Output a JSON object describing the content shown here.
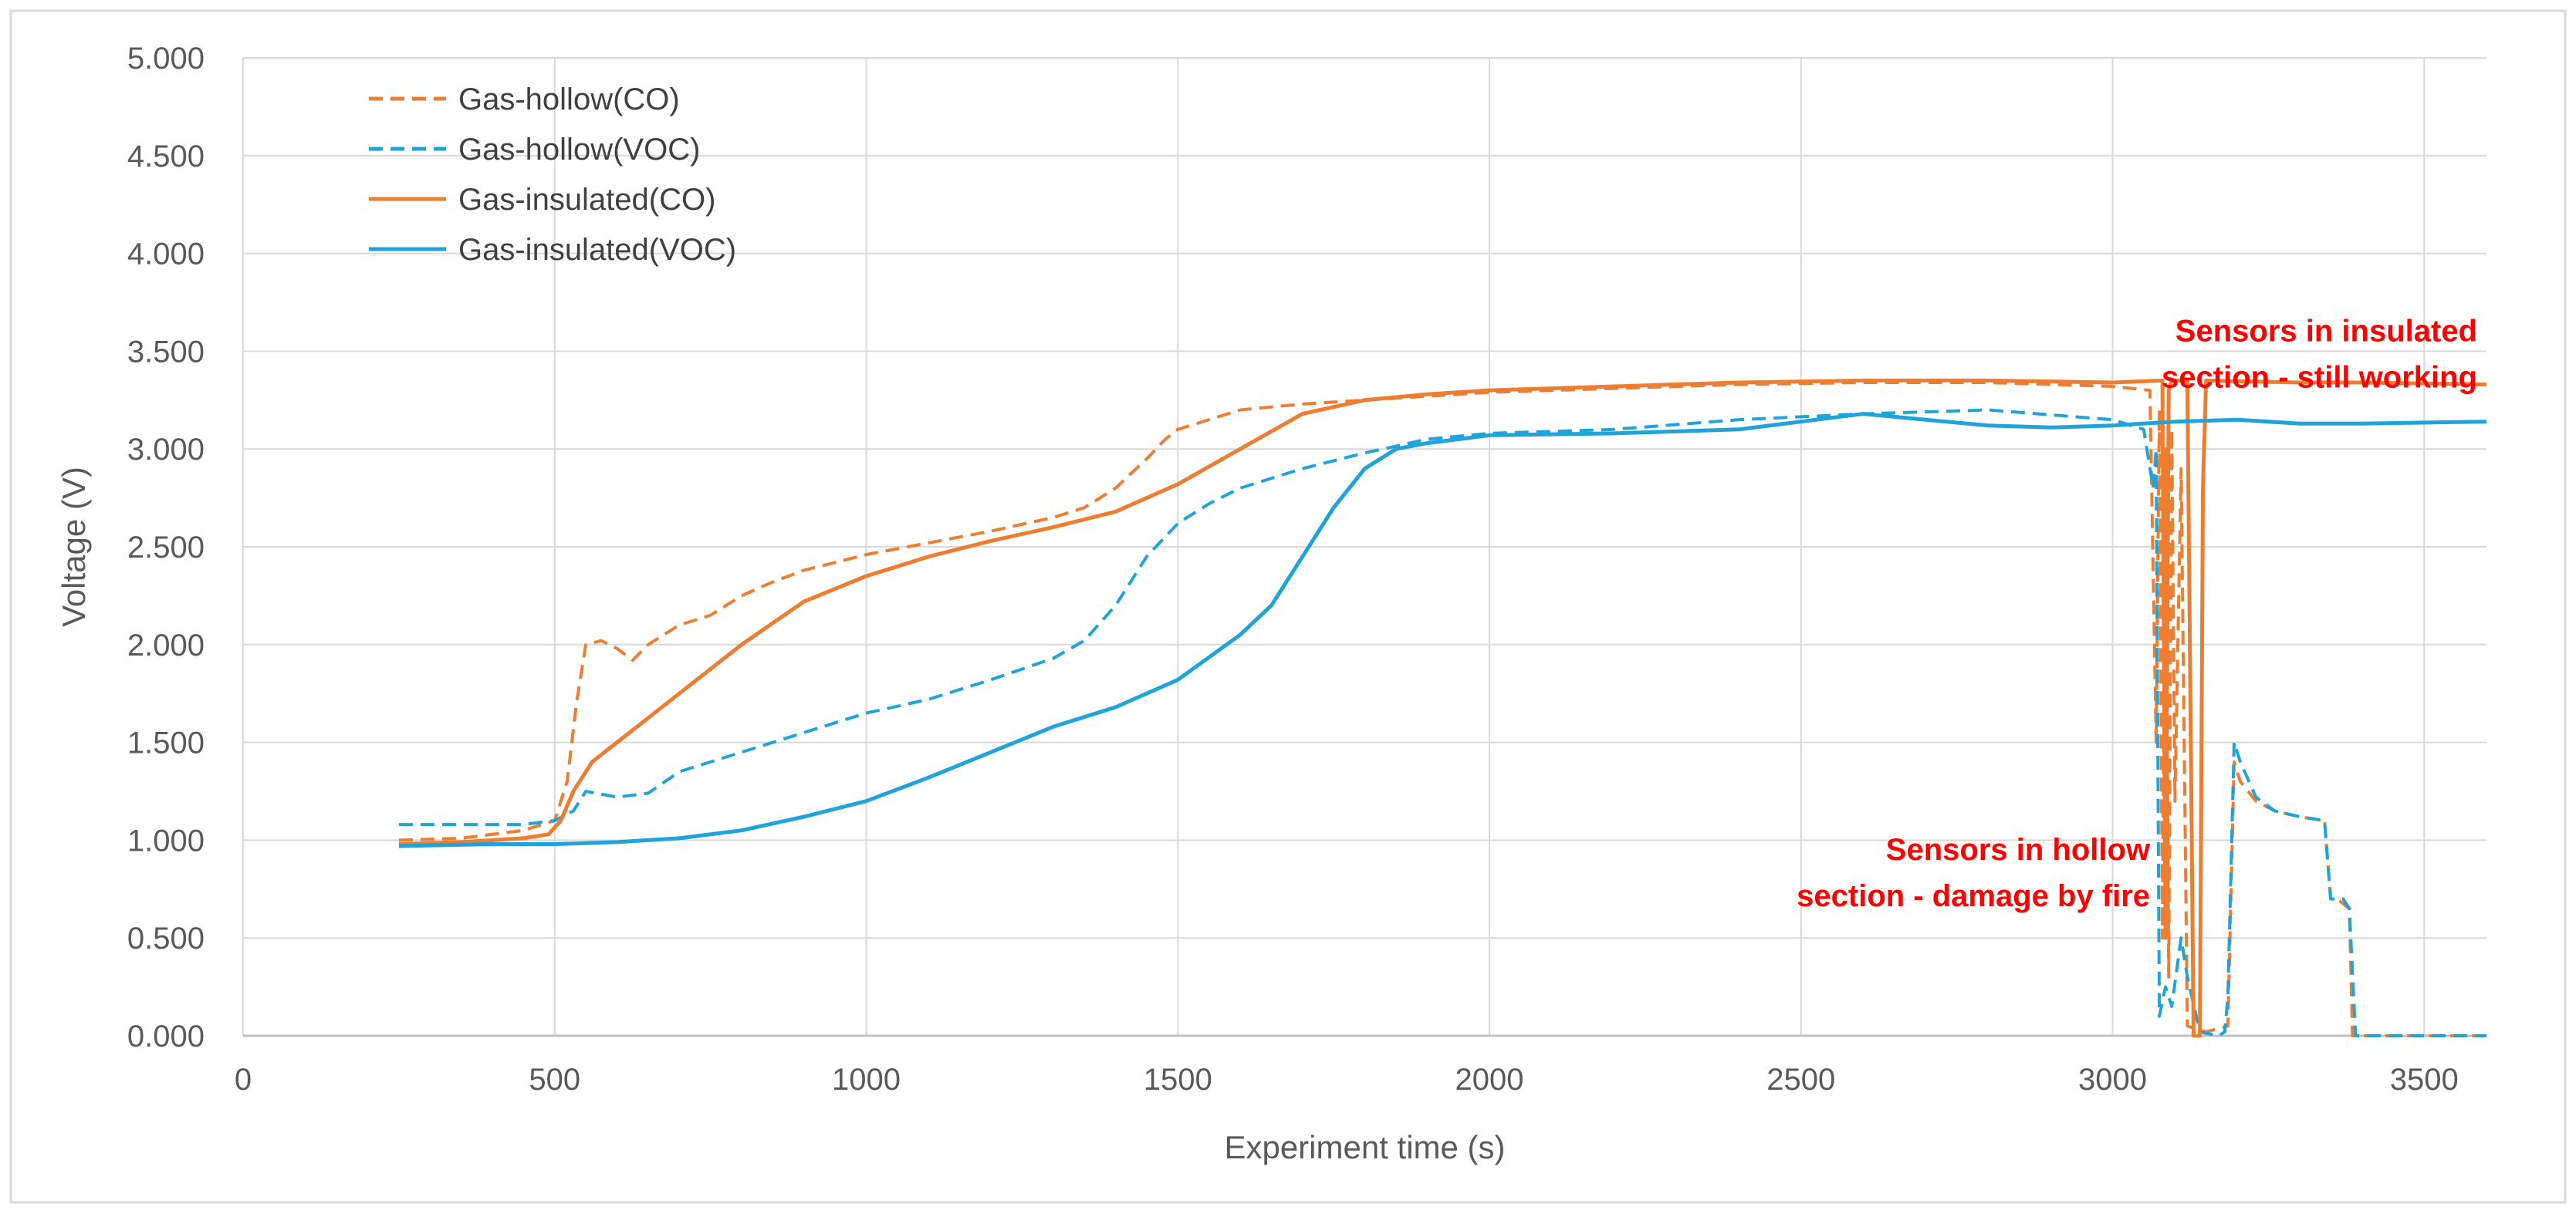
{
  "chart_data": {
    "type": "line",
    "title": "",
    "xlabel": "Experiment time (s)",
    "ylabel": "Voltage (V)",
    "xlim": [
      0,
      3600
    ],
    "ylim": [
      0,
      5
    ],
    "xticks": [
      0,
      500,
      1000,
      1500,
      2000,
      2500,
      3000,
      3500
    ],
    "yticks": [
      "0.000",
      "0.500",
      "1.000",
      "1.500",
      "2.000",
      "2.500",
      "3.000",
      "3.500",
      "4.000",
      "4.500",
      "5.000"
    ],
    "grid": true,
    "legend_position": "top-left",
    "series": [
      {
        "name": "Gas-hollow(CO)",
        "color": "#ED7D31",
        "dash": "dashed",
        "points": [
          [
            250,
            1.0
          ],
          [
            350,
            1.01
          ],
          [
            450,
            1.05
          ],
          [
            500,
            1.1
          ],
          [
            520,
            1.3
          ],
          [
            535,
            1.7
          ],
          [
            550,
            2.0
          ],
          [
            575,
            2.02
          ],
          [
            600,
            1.98
          ],
          [
            625,
            1.92
          ],
          [
            650,
            2.0
          ],
          [
            700,
            2.1
          ],
          [
            750,
            2.15
          ],
          [
            800,
            2.25
          ],
          [
            850,
            2.32
          ],
          [
            900,
            2.38
          ],
          [
            950,
            2.42
          ],
          [
            1000,
            2.46
          ],
          [
            1100,
            2.52
          ],
          [
            1200,
            2.58
          ],
          [
            1300,
            2.65
          ],
          [
            1350,
            2.7
          ],
          [
            1400,
            2.8
          ],
          [
            1450,
            2.95
          ],
          [
            1480,
            3.05
          ],
          [
            1500,
            3.1
          ],
          [
            1550,
            3.15
          ],
          [
            1600,
            3.2
          ],
          [
            1700,
            3.23
          ],
          [
            1800,
            3.25
          ],
          [
            1900,
            3.27
          ],
          [
            2000,
            3.29
          ],
          [
            2200,
            3.31
          ],
          [
            2400,
            3.33
          ],
          [
            2600,
            3.34
          ],
          [
            2800,
            3.34
          ],
          [
            3000,
            3.32
          ],
          [
            3060,
            3.3
          ],
          [
            3070,
            1.5
          ],
          [
            3075,
            3.2
          ],
          [
            3080,
            0.5
          ],
          [
            3085,
            3.0
          ],
          [
            3090,
            0.3
          ],
          [
            3095,
            3.1
          ],
          [
            3100,
            1.2
          ],
          [
            3110,
            2.9
          ],
          [
            3120,
            0.05
          ],
          [
            3150,
            0.02
          ],
          [
            3185,
            0.05
          ],
          [
            3195,
            1.4
          ],
          [
            3205,
            1.3
          ],
          [
            3230,
            1.2
          ],
          [
            3260,
            1.15
          ],
          [
            3300,
            1.12
          ],
          [
            3340,
            1.1
          ],
          [
            3350,
            0.7
          ],
          [
            3360,
            0.7
          ],
          [
            3380,
            0.65
          ],
          [
            3385,
            0.0
          ],
          [
            3600,
            0.0
          ]
        ]
      },
      {
        "name": "Gas-hollow(VOC)",
        "color": "#1FA3D9",
        "dash": "dashed",
        "points": [
          [
            250,
            1.08
          ],
          [
            350,
            1.08
          ],
          [
            450,
            1.08
          ],
          [
            500,
            1.1
          ],
          [
            530,
            1.15
          ],
          [
            550,
            1.25
          ],
          [
            600,
            1.22
          ],
          [
            650,
            1.24
          ],
          [
            700,
            1.35
          ],
          [
            800,
            1.45
          ],
          [
            900,
            1.55
          ],
          [
            1000,
            1.65
          ],
          [
            1100,
            1.72
          ],
          [
            1200,
            1.82
          ],
          [
            1300,
            1.93
          ],
          [
            1350,
            2.02
          ],
          [
            1400,
            2.2
          ],
          [
            1450,
            2.45
          ],
          [
            1500,
            2.62
          ],
          [
            1550,
            2.72
          ],
          [
            1600,
            2.8
          ],
          [
            1700,
            2.9
          ],
          [
            1800,
            2.98
          ],
          [
            1900,
            3.05
          ],
          [
            2000,
            3.08
          ],
          [
            2200,
            3.1
          ],
          [
            2400,
            3.15
          ],
          [
            2600,
            3.18
          ],
          [
            2800,
            3.2
          ],
          [
            3000,
            3.15
          ],
          [
            3050,
            3.1
          ],
          [
            3065,
            2.8
          ],
          [
            3070,
            3.0
          ],
          [
            3075,
            0.1
          ],
          [
            3085,
            0.25
          ],
          [
            3095,
            0.15
          ],
          [
            3110,
            0.5
          ],
          [
            3120,
            0.3
          ],
          [
            3140,
            0.02
          ],
          [
            3170,
            0.0
          ],
          [
            3180,
            0.02
          ],
          [
            3185,
            0.2
          ],
          [
            3195,
            1.5
          ],
          [
            3205,
            1.4
          ],
          [
            3230,
            1.22
          ],
          [
            3260,
            1.15
          ],
          [
            3300,
            1.12
          ],
          [
            3340,
            1.1
          ],
          [
            3350,
            0.7
          ],
          [
            3370,
            0.7
          ],
          [
            3380,
            0.65
          ],
          [
            3390,
            0.0
          ],
          [
            3600,
            0.0
          ]
        ]
      },
      {
        "name": "Gas-insulated(CO)",
        "color": "#ED7D31",
        "dash": "solid",
        "points": [
          [
            250,
            0.98
          ],
          [
            350,
            0.99
          ],
          [
            450,
            1.01
          ],
          [
            490,
            1.03
          ],
          [
            510,
            1.1
          ],
          [
            530,
            1.25
          ],
          [
            560,
            1.4
          ],
          [
            600,
            1.5
          ],
          [
            700,
            1.75
          ],
          [
            800,
            2.0
          ],
          [
            900,
            2.22
          ],
          [
            1000,
            2.35
          ],
          [
            1100,
            2.45
          ],
          [
            1200,
            2.53
          ],
          [
            1300,
            2.6
          ],
          [
            1400,
            2.68
          ],
          [
            1500,
            2.82
          ],
          [
            1600,
            3.0
          ],
          [
            1700,
            3.18
          ],
          [
            1800,
            3.25
          ],
          [
            1900,
            3.28
          ],
          [
            2000,
            3.3
          ],
          [
            2200,
            3.32
          ],
          [
            2400,
            3.34
          ],
          [
            2600,
            3.35
          ],
          [
            2800,
            3.35
          ],
          [
            3000,
            3.34
          ],
          [
            3080,
            3.35
          ],
          [
            3085,
            0.5
          ],
          [
            3090,
            3.3
          ],
          [
            3095,
            3.35
          ],
          [
            3120,
            3.35
          ],
          [
            3130,
            0.0
          ],
          [
            3140,
            0.0
          ],
          [
            3145,
            2.8
          ],
          [
            3150,
            3.35
          ],
          [
            3300,
            3.34
          ],
          [
            3400,
            3.34
          ],
          [
            3600,
            3.33
          ]
        ]
      },
      {
        "name": "Gas-insulated(VOC)",
        "color": "#1FA3D9",
        "dash": "solid",
        "points": [
          [
            250,
            0.97
          ],
          [
            400,
            0.98
          ],
          [
            500,
            0.98
          ],
          [
            600,
            0.99
          ],
          [
            700,
            1.01
          ],
          [
            800,
            1.05
          ],
          [
            900,
            1.12
          ],
          [
            1000,
            1.2
          ],
          [
            1100,
            1.32
          ],
          [
            1200,
            1.45
          ],
          [
            1300,
            1.58
          ],
          [
            1400,
            1.68
          ],
          [
            1500,
            1.82
          ],
          [
            1600,
            2.05
          ],
          [
            1650,
            2.2
          ],
          [
            1700,
            2.45
          ],
          [
            1750,
            2.7
          ],
          [
            1800,
            2.9
          ],
          [
            1850,
            3.0
          ],
          [
            1900,
            3.03
          ],
          [
            2000,
            3.07
          ],
          [
            2200,
            3.08
          ],
          [
            2400,
            3.1
          ],
          [
            2500,
            3.14
          ],
          [
            2600,
            3.18
          ],
          [
            2700,
            3.15
          ],
          [
            2800,
            3.12
          ],
          [
            2900,
            3.11
          ],
          [
            3000,
            3.12
          ],
          [
            3100,
            3.14
          ],
          [
            3200,
            3.15
          ],
          [
            3300,
            3.13
          ],
          [
            3400,
            3.13
          ],
          [
            3600,
            3.14
          ]
        ]
      }
    ],
    "annotations": [
      {
        "lines": [
          "Sensors in insulated",
          "section - still working"
        ],
        "color": "#FF0000",
        "anchor_data": [
          3600,
          3.55
        ],
        "align": "end"
      },
      {
        "lines": [
          "Sensors in hollow",
          "section - damage by fire"
        ],
        "color": "#FF0000",
        "anchor_data": [
          3075,
          0.9
        ],
        "align": "end"
      }
    ]
  }
}
